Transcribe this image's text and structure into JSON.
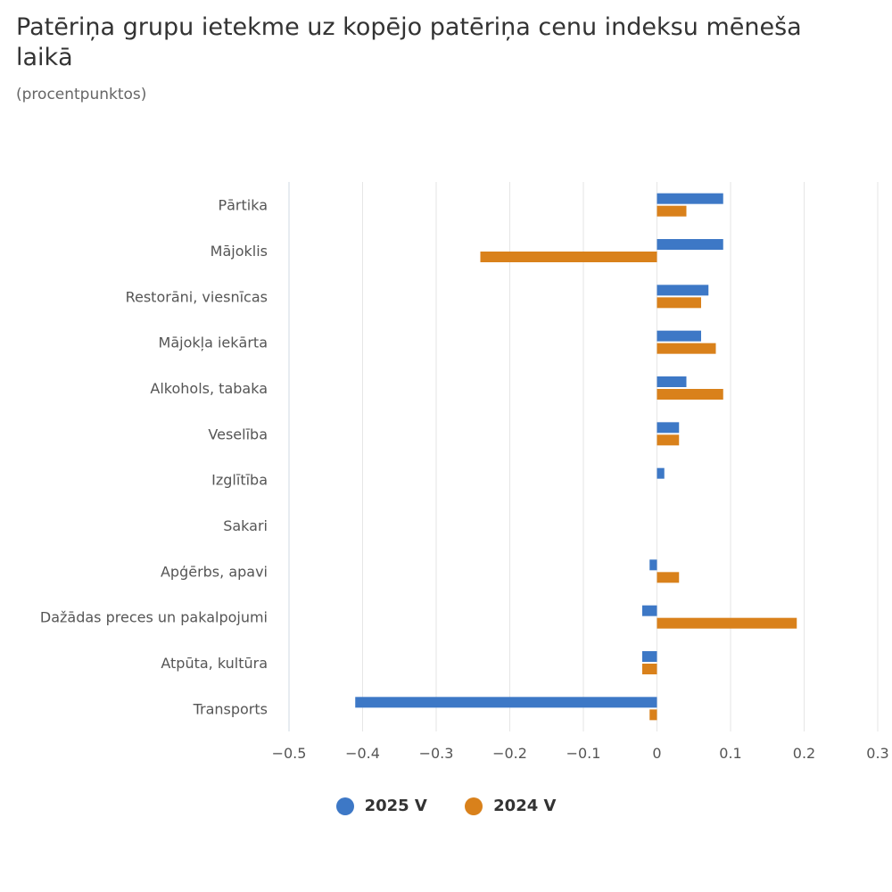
{
  "title": "Patēriņa grupu ietekme uz kopējo patēriņa cenu indeksu mēneša laikā",
  "subtitle": "(procentpunktos)",
  "chart_data": {
    "type": "bar",
    "orientation": "horizontal",
    "categories": [
      "Pārtika",
      "Mājoklis",
      "Restorāni, viesnīcas",
      "Mājokļa iekārta",
      "Alkohols, tabaka",
      "Veselība",
      "Izglītība",
      "Sakari",
      "Apģērbs, apavi",
      "Dažādas preces un pakalpojumi",
      "Atpūta, kultūra",
      "Transports"
    ],
    "series": [
      {
        "name": "2025 V",
        "color": "#3d78c6",
        "values": [
          0.09,
          0.09,
          0.07,
          0.06,
          0.04,
          0.03,
          0.01,
          0,
          -0.01,
          -0.02,
          -0.02,
          -0.41
        ]
      },
      {
        "name": "2024 V",
        "color": "#d9811b",
        "values": [
          0.04,
          -0.24,
          0.06,
          0.08,
          0.09,
          0.03,
          0,
          0,
          0.03,
          0.19,
          -0.02,
          -0.01
        ]
      }
    ],
    "xlim": [
      -0.5,
      0.3
    ],
    "xticks": [
      -0.5,
      -0.4,
      -0.3,
      -0.2,
      -0.1,
      0,
      0.1,
      0.2,
      0.3
    ],
    "xtick_labels": [
      "−0.5",
      "−0.4",
      "−0.3",
      "−0.2",
      "−0.1",
      "0",
      "0.1",
      "0.2",
      "0.3"
    ],
    "grid": true,
    "legend_position": "bottom-center"
  }
}
